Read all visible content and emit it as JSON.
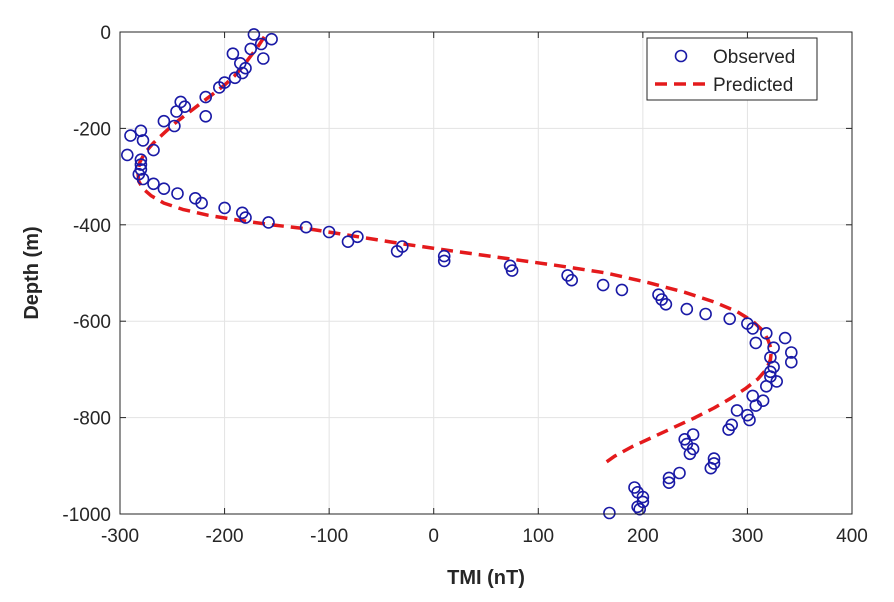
{
  "chart_data": {
    "type": "scatter",
    "title": "",
    "xlabel": "TMI (nT)",
    "ylabel": "Depth (m)",
    "xlim": [
      -300,
      400
    ],
    "ylim": [
      -1000,
      0
    ],
    "xticks": [
      -300,
      -200,
      -100,
      0,
      100,
      200,
      300,
      400
    ],
    "yticks": [
      0,
      -200,
      -400,
      -600,
      -800,
      -1000
    ],
    "xtick_labels": [
      "-300",
      "-200",
      "-100",
      "0",
      "100",
      "200",
      "300",
      "400"
    ],
    "ytick_labels": [
      "0",
      "-200",
      "-400",
      "-600",
      "-800",
      "-1000"
    ],
    "grid": true,
    "legend_position": "top-right",
    "colors": {
      "observed": "#1a1aa6",
      "predicted": "#e41a1c",
      "grid": "#e3e3e3",
      "axis": "#262626"
    },
    "series": [
      {
        "name": "Observed",
        "style": "open-circle",
        "x": [
          -172,
          -155,
          -165,
          -175,
          -192,
          -163,
          -185,
          -180,
          -183,
          -190,
          -200,
          -205,
          -218,
          -242,
          -238,
          -246,
          -218,
          -258,
          -248,
          -280,
          -290,
          -278,
          -268,
          -293,
          -280,
          -280,
          -280,
          -282,
          -278,
          -268,
          -258,
          -245,
          -228,
          -222,
          -200,
          -183,
          -180,
          -158,
          -122,
          -100,
          -82,
          -73,
          -35,
          -30,
          10,
          10,
          73,
          75,
          128,
          132,
          162,
          180,
          215,
          218,
          222,
          242,
          260,
          283,
          300,
          305,
          318,
          308,
          336,
          325,
          342,
          322,
          342,
          325,
          322,
          322,
          328,
          318,
          305,
          315,
          308,
          290,
          300,
          302,
          285,
          282,
          248,
          240,
          242,
          248,
          245,
          268,
          268,
          265,
          235,
          225,
          225,
          192,
          195,
          200,
          200,
          195,
          197,
          168
        ],
        "y": [
          -5,
          -15,
          -25,
          -35,
          -45,
          -55,
          -65,
          -75,
          -85,
          -95,
          -105,
          -115,
          -135,
          -145,
          -155,
          -165,
          -175,
          -185,
          -195,
          -205,
          -215,
          -225,
          -245,
          -255,
          -265,
          -275,
          -285,
          -295,
          -305,
          -315,
          -325,
          -335,
          -345,
          -355,
          -365,
          -375,
          -385,
          -395,
          -405,
          -415,
          -435,
          -425,
          -455,
          -445,
          -465,
          -475,
          -485,
          -495,
          -505,
          -515,
          -525,
          -535,
          -545,
          -555,
          -565,
          -575,
          -585,
          -595,
          -605,
          -615,
          -625,
          -645,
          -635,
          -655,
          -665,
          -675,
          -685,
          -695,
          -705,
          -715,
          -725,
          -735,
          -755,
          -765,
          -775,
          -785,
          -795,
          -805,
          -815,
          -825,
          -835,
          -845,
          -855,
          -865,
          -875,
          -885,
          -895,
          -905,
          -915,
          -925,
          -935,
          -945,
          -955,
          -965,
          -975,
          -985,
          -990,
          -998
        ]
      },
      {
        "name": "Predicted",
        "style": "dashed-line",
        "x": [
          -162,
          -168,
          -175,
          -182,
          -190,
          -200,
          -212,
          -224,
          -236,
          -248,
          -258,
          -268,
          -276,
          -281,
          -283,
          -282,
          -278,
          -270,
          -258,
          -240,
          -216,
          -188,
          -155,
          -115,
          -72,
          -28,
          20,
          70,
          120,
          165,
          205,
          240,
          268,
          290,
          305,
          315,
          320,
          323,
          322,
          318,
          310,
          298,
          284,
          268,
          250,
          230,
          210,
          190,
          173,
          160
        ],
        "y": [
          -10,
          -30,
          -50,
          -70,
          -90,
          -110,
          -130,
          -150,
          -170,
          -190,
          -210,
          -230,
          -250,
          -270,
          -290,
          -310,
          -325,
          -340,
          -355,
          -368,
          -380,
          -390,
          -400,
          -410,
          -425,
          -440,
          -455,
          -470,
          -485,
          -500,
          -520,
          -540,
          -560,
          -580,
          -600,
          -620,
          -640,
          -660,
          -680,
          -700,
          -720,
          -740,
          -760,
          -780,
          -800,
          -820,
          -840,
          -860,
          -880,
          -900
        ]
      }
    ]
  }
}
